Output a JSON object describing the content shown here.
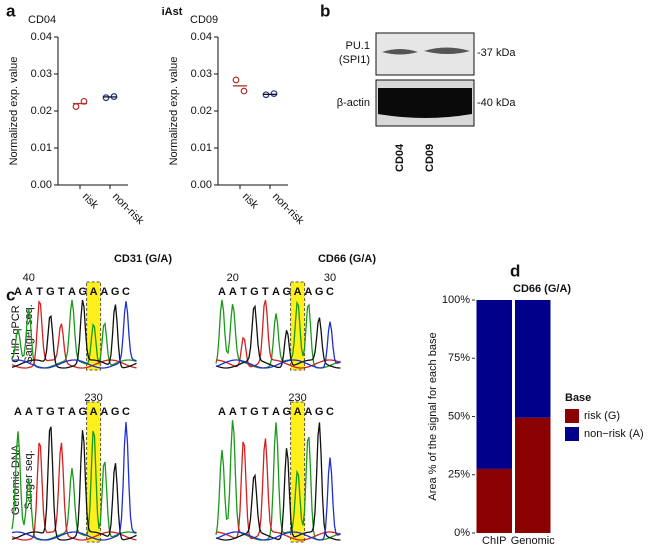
{
  "panel_labels": [
    "a",
    "b",
    "c",
    "d"
  ],
  "group_title": "iAst",
  "chart_data": [
    {
      "type": "dot",
      "title": "CD04",
      "y_label": "Normalized exp. value",
      "categories": [
        "risk",
        "non-risk"
      ],
      "colors": [
        "#b0302a",
        "#22339a"
      ],
      "values": [
        [
          0.0212,
          0.0226
        ],
        [
          0.0236,
          0.0239
        ]
      ],
      "means": [
        0.022,
        0.0238
      ],
      "ylim": [
        0,
        0.04
      ],
      "yticks": [
        {
          "value": 0,
          "label": "0.00"
        },
        {
          "value": 0.01,
          "label": "0.01"
        },
        {
          "value": 0.02,
          "label": "0.02"
        },
        {
          "value": 0.03,
          "label": "0.03"
        },
        {
          "value": 0.04,
          "label": "0.04"
        }
      ]
    },
    {
      "type": "dot",
      "title": "CD09",
      "y_label": "Normalized exp. value",
      "categories": [
        "risk",
        "non-risk"
      ],
      "colors": [
        "#b0302a",
        "#22339a"
      ],
      "values": [
        [
          0.0284,
          0.0254
        ],
        [
          0.0244,
          0.0247
        ]
      ],
      "means": [
        0.0268,
        0.0245
      ],
      "ylim": [
        0,
        0.04
      ],
      "yticks": [
        {
          "value": 0,
          "label": "0.00"
        },
        {
          "value": 0.01,
          "label": "0.01"
        },
        {
          "value": 0.02,
          "label": "0.02"
        },
        {
          "value": 0.03,
          "label": "0.03"
        },
        {
          "value": 0.04,
          "label": "0.04"
        }
      ]
    },
    {
      "type": "stacked_bar",
      "title": "CD66 (G/A)",
      "y_label": "Area % of the signal for each base",
      "categories": [
        "ChIP",
        "Genomic"
      ],
      "series": [
        {
          "name": "risk (G)",
          "color": "#8b0000",
          "values": [
            27.5,
            49.5
          ]
        },
        {
          "name": "non−risk (A)",
          "color": "#00008b",
          "values": [
            72.5,
            50.5
          ]
        }
      ],
      "legend_title": "Base",
      "ylim": [
        0,
        100
      ],
      "yticks": [
        {
          "value": 0,
          "label": "0%"
        },
        {
          "value": 25,
          "label": "25%"
        },
        {
          "value": 50,
          "label": "50%"
        },
        {
          "value": 75,
          "label": "75%"
        },
        {
          "value": 100,
          "label": "100%"
        }
      ]
    }
  ],
  "blot": {
    "bands": [
      {
        "label": [
          "PU.1",
          "(SPI1)"
        ],
        "size": "-37 kDa"
      },
      {
        "label": [
          "β-actin"
        ],
        "size": "-40 kDa"
      }
    ],
    "lanes": [
      "CD04",
      "CD09"
    ]
  },
  "sequencing": {
    "rows": [
      [
        "ChIP-qPCR",
        "Sanger seq."
      ],
      [
        "Genomic DNA",
        "Sanger seq."
      ]
    ],
    "columns": [
      {
        "title": "CD31 (G/A)",
        "traces": [
          {
            "bases": [
              "A",
              "A",
              "T",
              "G",
              "T",
              "A",
              "G",
              "A",
              "A",
              "G",
              "C"
            ],
            "positions": [
              null,
              "40",
              null,
              null,
              null,
              null,
              null,
              null,
              null,
              null,
              null
            ]
          },
          {
            "bases": [
              "A",
              "A",
              "T",
              "G",
              "T",
              "A",
              "G",
              "A",
              "A",
              "G",
              "C"
            ],
            "positions": [
              null,
              null,
              null,
              null,
              null,
              null,
              null,
              "230",
              null,
              null,
              null
            ]
          }
        ]
      },
      {
        "title": "CD66 (G/A)",
        "traces": [
          {
            "bases": [
              "A",
              "A",
              "T",
              "G",
              "T",
              "A",
              "G",
              "A",
              "A",
              "G",
              "C"
            ],
            "positions": [
              null,
              "20",
              null,
              null,
              null,
              null,
              null,
              null,
              null,
              null,
              "30"
            ]
          },
          {
            "bases": [
              "A",
              "A",
              "T",
              "G",
              "T",
              "A",
              "G",
              "A",
              "A",
              "G",
              "C"
            ],
            "positions": [
              null,
              null,
              null,
              null,
              null,
              null,
              null,
              "230",
              null,
              null,
              null
            ]
          }
        ]
      }
    ]
  }
}
